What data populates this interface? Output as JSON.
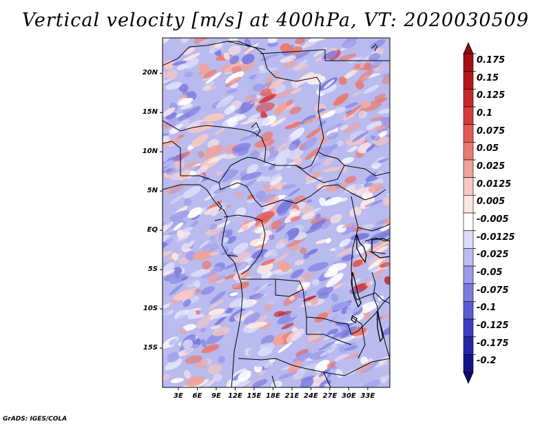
{
  "title": "Vertical velocity [m/s] at 400hPa, VT: 2020030509",
  "footer": "GrADS: IGES/COLA",
  "map": {
    "lon_range": [
      0.5,
      36.5
    ],
    "lat_range": [
      -20,
      24.5
    ],
    "lat_ticks": [
      {
        "value": 20,
        "label": "20N"
      },
      {
        "value": 15,
        "label": "15N"
      },
      {
        "value": 10,
        "label": "10N"
      },
      {
        "value": 5,
        "label": "5N"
      },
      {
        "value": 0,
        "label": "EQ"
      },
      {
        "value": -5,
        "label": "5S"
      },
      {
        "value": -10,
        "label": "10S"
      },
      {
        "value": -15,
        "label": "15S"
      }
    ],
    "lon_ticks": [
      {
        "value": 3,
        "label": "3E"
      },
      {
        "value": 6,
        "label": "6E"
      },
      {
        "value": 9,
        "label": "9E"
      },
      {
        "value": 12,
        "label": "12E"
      },
      {
        "value": 15,
        "label": "15E"
      },
      {
        "value": 18,
        "label": "18E"
      },
      {
        "value": 21,
        "label": "21E"
      },
      {
        "value": 24,
        "label": "24E"
      },
      {
        "value": 27,
        "label": "27E"
      },
      {
        "value": 30,
        "label": "30E"
      },
      {
        "value": 33,
        "label": "33E"
      }
    ]
  },
  "colorbar": {
    "levels": [
      {
        "label": "0.175",
        "color": "#a50f15"
      },
      {
        "label": "0.15",
        "color": "#b3161c"
      },
      {
        "label": "0.125",
        "color": "#c52a2a"
      },
      {
        "label": "0.1",
        "color": "#d43c3c"
      },
      {
        "label": "0.075",
        "color": "#e05a55"
      },
      {
        "label": "0.05",
        "color": "#e87a72"
      },
      {
        "label": "0.025",
        "color": "#f1a29a"
      },
      {
        "label": "0.0125",
        "color": "#f8c8c1"
      },
      {
        "label": "0.005",
        "color": "#fde6e2"
      },
      {
        "label": "-0.005",
        "color": "#ffffff"
      },
      {
        "label": "-0.0125",
        "color": "#dcdcf8"
      },
      {
        "label": "-0.025",
        "color": "#bcbcf2"
      },
      {
        "label": "-0.05",
        "color": "#9c9cea"
      },
      {
        "label": "-0.075",
        "color": "#7c7ce0"
      },
      {
        "label": "-0.1",
        "color": "#5c5cd2"
      },
      {
        "label": "-0.125",
        "color": "#3d3dc2"
      },
      {
        "label": "-0.175",
        "color": "#2626a8"
      },
      {
        "label": "-0.2",
        "color": "#14148a"
      }
    ],
    "top_arrow_color": "#8b0b10",
    "bottom_arrow_color": "#0c0c70"
  }
}
